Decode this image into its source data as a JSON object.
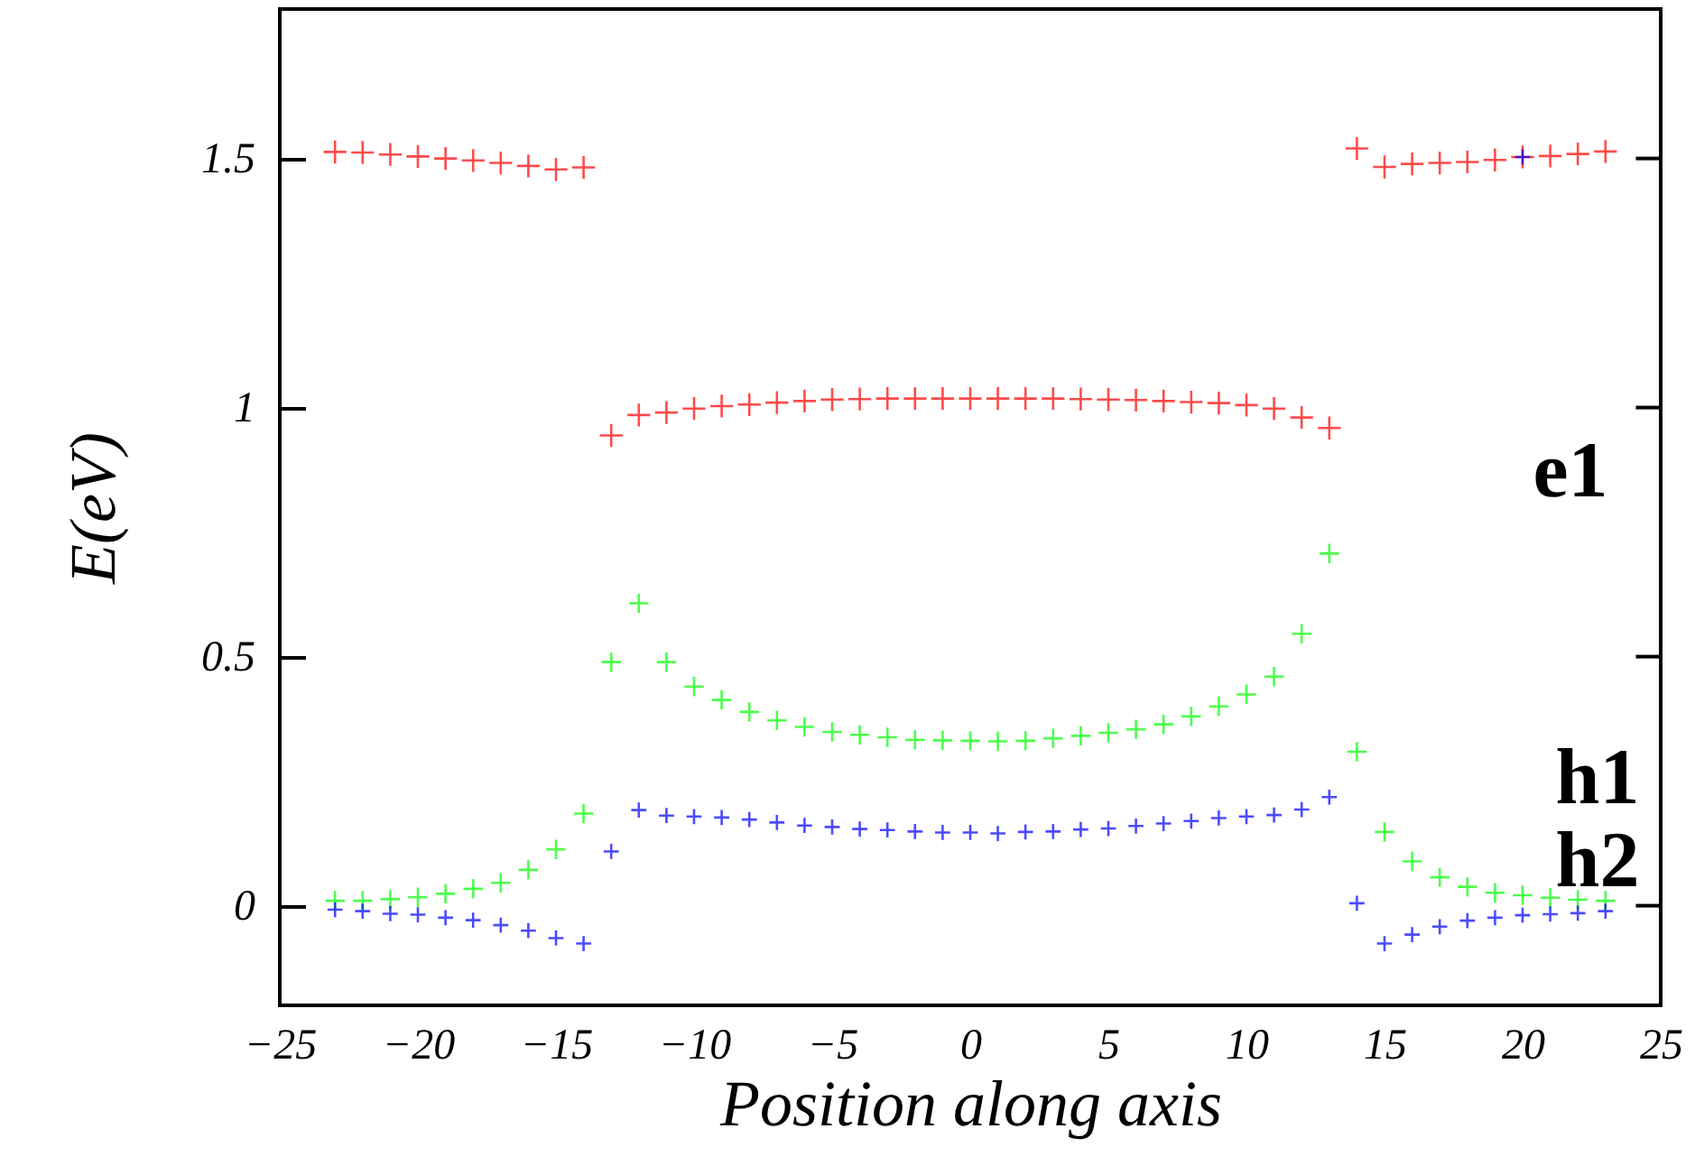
{
  "chart_data": {
    "type": "scatter",
    "xlabel": "Position along axis",
    "ylabel": "E(eV)",
    "x": [
      -23,
      -22,
      -21,
      -20,
      -19,
      -18,
      -17,
      -16,
      -15,
      -14,
      -13,
      -12,
      -11,
      -10,
      -9,
      -8,
      -7,
      -6,
      -5,
      -4,
      -3,
      -2,
      -1,
      0,
      1,
      2,
      3,
      4,
      5,
      6,
      7,
      8,
      9,
      10,
      11,
      12,
      13,
      14,
      15,
      16,
      17,
      18,
      19,
      20,
      21,
      22,
      23
    ],
    "xlim": [
      -25,
      25
    ],
    "xticks": [
      -25,
      -20,
      -15,
      -10,
      -5,
      0,
      5,
      10,
      15,
      20,
      25
    ],
    "ylim": [
      -0.2,
      1.8
    ],
    "yticks": [
      0,
      0.5,
      1,
      1.5
    ],
    "series": [
      {
        "color": "#ff0000",
        "marker": "cross",
        "values": [
          1.513,
          1.512,
          1.508,
          1.504,
          1.5,
          1.496,
          1.491,
          1.485,
          1.478,
          1.482,
          0.944,
          0.985,
          0.99,
          0.998,
          1.003,
          1.006,
          1.01,
          1.013,
          1.016,
          1.017,
          1.018,
          1.018,
          1.018,
          1.018,
          1.018,
          1.018,
          1.018,
          1.017,
          1.016,
          1.015,
          1.013,
          1.011,
          1.009,
          1.005,
          0.998,
          0.98,
          0.959,
          1.52,
          1.483,
          1.489,
          1.491,
          1.493,
          1.497,
          1.503,
          1.505,
          1.509,
          1.514
        ]
      },
      {
        "color": "#00ff00",
        "marker": "cross",
        "values": [
          0.01,
          0.01,
          0.013,
          0.017,
          0.024,
          0.034,
          0.046,
          0.072,
          0.113,
          0.185,
          0.489,
          0.607,
          0.489,
          0.44,
          0.413,
          0.389,
          0.372,
          0.359,
          0.349,
          0.343,
          0.338,
          0.333,
          0.332,
          0.331,
          0.33,
          0.331,
          0.336,
          0.341,
          0.347,
          0.354,
          0.364,
          0.38,
          0.4,
          0.424,
          0.46,
          0.546,
          0.707,
          0.309,
          0.148,
          0.089,
          0.057,
          0.038,
          0.026,
          0.021,
          0.016,
          0.012,
          0.01
        ]
      },
      {
        "color": "#0000ff",
        "marker": "cross",
        "x": [
          -23,
          -22,
          -21,
          -20,
          -19,
          -18,
          -17,
          -16,
          -15,
          -14,
          -13,
          -12,
          -11,
          -10,
          -9,
          -8,
          -7,
          -6,
          -5,
          -4,
          -3,
          -2,
          -1,
          0,
          1,
          2,
          3,
          4,
          5,
          6,
          7,
          8,
          9,
          10,
          11,
          12,
          13,
          14,
          15,
          16,
          17,
          18,
          19,
          20,
          21,
          22,
          23,
          20
        ],
        "values": [
          -0.008,
          -0.011,
          -0.016,
          -0.018,
          -0.024,
          -0.029,
          -0.039,
          -0.05,
          -0.065,
          -0.076,
          0.109,
          0.192,
          0.181,
          0.179,
          0.177,
          0.173,
          0.167,
          0.161,
          0.158,
          0.154,
          0.152,
          0.149,
          0.147,
          0.147,
          0.145,
          0.148,
          0.149,
          0.153,
          0.155,
          0.16,
          0.165,
          0.17,
          0.176,
          0.179,
          0.182,
          0.193,
          0.218,
          0.005,
          -0.076,
          -0.058,
          -0.042,
          -0.03,
          -0.024,
          -0.019,
          -0.017,
          -0.015,
          -0.011,
          1.503
        ]
      }
    ],
    "annotations": [
      "e1",
      "h1",
      "h2"
    ],
    "grid": false
  }
}
